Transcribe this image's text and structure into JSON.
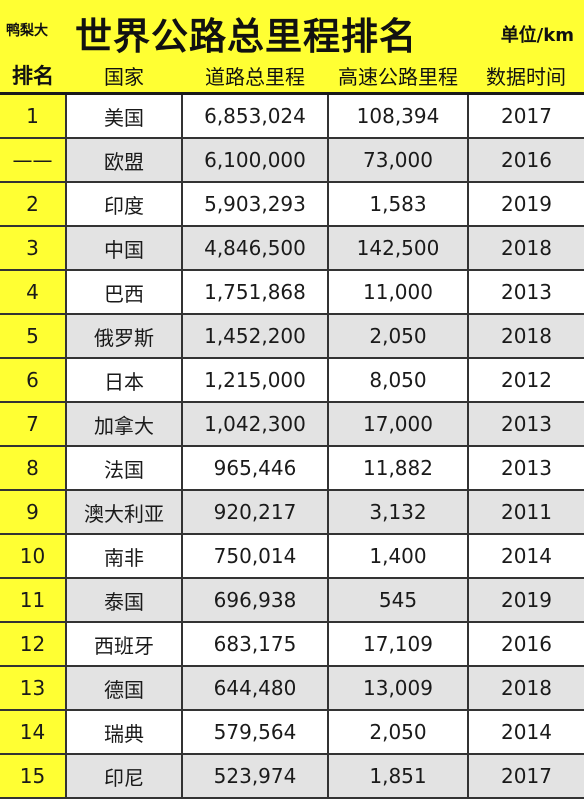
{
  "header": {
    "brand": "鸭梨大",
    "title": "世界公路总里程排名",
    "unit": "单位/km"
  },
  "columns": [
    "排名",
    "国家",
    "道路总里程",
    "高速公路里程",
    "数据时间"
  ],
  "rows": [
    {
      "rank": "1",
      "country": "美国",
      "road": "6,853,024",
      "highway": "108,394",
      "year": "2017"
    },
    {
      "rank": "——",
      "country": "欧盟",
      "road": "6,100,000",
      "highway": "73,000",
      "year": "2016"
    },
    {
      "rank": "2",
      "country": "印度",
      "road": "5,903,293",
      "highway": "1,583",
      "year": "2019"
    },
    {
      "rank": "3",
      "country": "中国",
      "road": "4,846,500",
      "highway": "142,500",
      "year": "2018"
    },
    {
      "rank": "4",
      "country": "巴西",
      "road": "1,751,868",
      "highway": "11,000",
      "year": "2013"
    },
    {
      "rank": "5",
      "country": "俄罗斯",
      "road": "1,452,200",
      "highway": "2,050",
      "year": "2018"
    },
    {
      "rank": "6",
      "country": "日本",
      "road": "1,215,000",
      "highway": "8,050",
      "year": "2012"
    },
    {
      "rank": "7",
      "country": "加拿大",
      "road": "1,042,300",
      "highway": "17,000",
      "year": "2013"
    },
    {
      "rank": "8",
      "country": "法国",
      "road": "965,446",
      "highway": "11,882",
      "year": "2013"
    },
    {
      "rank": "9",
      "country": "澳大利亚",
      "road": "920,217",
      "highway": "3,132",
      "year": "2011"
    },
    {
      "rank": "10",
      "country": "南非",
      "road": "750,014",
      "highway": "1,400",
      "year": "2014"
    },
    {
      "rank": "11",
      "country": "泰国",
      "road": "696,938",
      "highway": "545",
      "year": "2019"
    },
    {
      "rank": "12",
      "country": "西班牙",
      "road": "683,175",
      "highway": "17,109",
      "year": "2016"
    },
    {
      "rank": "13",
      "country": "德国",
      "road": "644,480",
      "highway": "13,009",
      "year": "2018"
    },
    {
      "rank": "14",
      "country": "瑞典",
      "road": "579,564",
      "highway": "2,050",
      "year": "2014"
    },
    {
      "rank": "15",
      "country": "印尼",
      "road": "523,974",
      "highway": "1,851",
      "year": "2017"
    }
  ],
  "colors": {
    "header_bg": "#ffff33",
    "row_white": "#ffffff",
    "row_gray": "#e3e3e3",
    "border": "#333333"
  }
}
